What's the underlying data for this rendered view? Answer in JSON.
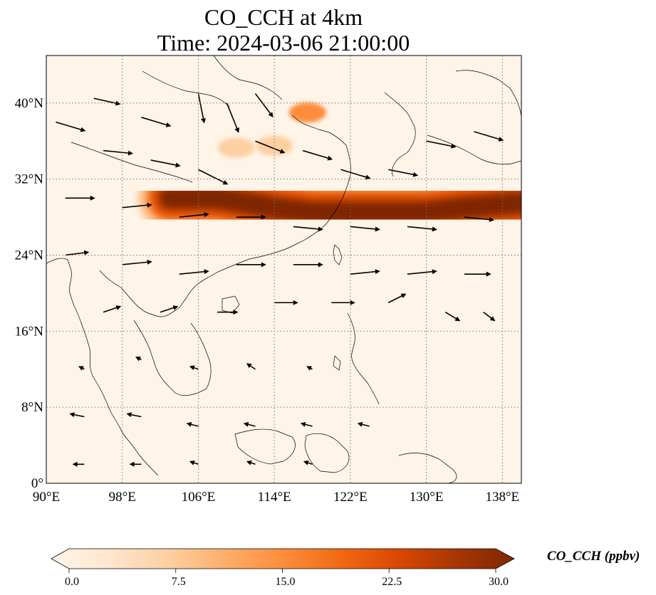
{
  "title_line1": "CO_CCH at 4km",
  "title_line2": "Time: 2024-03-06 21:00:00",
  "colorbar": {
    "label": "CO_CCH (ppbv)",
    "ticks": [
      "0.0",
      "7.5",
      "15.0",
      "22.5",
      "30.0"
    ],
    "colormap": [
      "#fff5eb",
      "#fee6ce",
      "#fdd0a2",
      "#fdae6b",
      "#fd8d3c",
      "#f16913",
      "#d94801",
      "#a63603",
      "#7f2704"
    ],
    "min": 0,
    "max": 30
  },
  "chart_data": {
    "type": "heatmap",
    "title": "CO_CCH at 4km",
    "subtitle": "Time: 2024-03-06 21:00:00",
    "variable": "CO_CCH",
    "units": "ppbv",
    "colormap": "OrRd",
    "color_range": [
      0,
      30
    ],
    "xlim": [
      90,
      140
    ],
    "ylim": [
      0,
      45
    ],
    "x_ticks": [
      {
        "value": 90,
        "label": "90°E"
      },
      {
        "value": 98,
        "label": "98°E"
      },
      {
        "value": 106,
        "label": "106°E"
      },
      {
        "value": 114,
        "label": "114°E"
      },
      {
        "value": 122,
        "label": "122°E"
      },
      {
        "value": 130,
        "label": "130°E"
      },
      {
        "value": 138,
        "label": "138°E"
      }
    ],
    "y_ticks": [
      {
        "value": 0,
        "label": "0°"
      },
      {
        "value": 8,
        "label": "8°N"
      },
      {
        "value": 16,
        "label": "16°N"
      },
      {
        "value": 24,
        "label": "24°N"
      },
      {
        "value": 32,
        "label": "32°N"
      },
      {
        "value": 40,
        "label": "40°N"
      }
    ],
    "grid": true,
    "plume": {
      "description_value_max": 30,
      "core_path": [
        [
          103,
          30
        ],
        [
          108,
          30
        ],
        [
          114,
          29
        ],
        [
          118,
          28.5
        ],
        [
          122,
          28.5
        ],
        [
          126,
          28.5
        ],
        [
          130,
          28.5
        ],
        [
          134,
          29
        ],
        [
          140,
          29.5
        ]
      ],
      "secondary_blobs": [
        {
          "lon": 117.5,
          "lat": 39,
          "value": 14
        },
        {
          "lon": 110,
          "lat": 35.3,
          "value": 8
        },
        {
          "lon": 114,
          "lat": 35.5,
          "value": 6
        }
      ]
    },
    "wind_vectors": [
      {
        "lon": 91,
        "lat": 38,
        "u": 1,
        "v": -0.3
      },
      {
        "lon": 95,
        "lat": 40.5,
        "u": 0.9,
        "v": -0.2
      },
      {
        "lon": 100,
        "lat": 38.5,
        "u": 1,
        "v": -0.3
      },
      {
        "lon": 106,
        "lat": 41,
        "u": 0.2,
        "v": -1
      },
      {
        "lon": 109,
        "lat": 40,
        "u": 0.4,
        "v": -1
      },
      {
        "lon": 112,
        "lat": 41,
        "u": 0.6,
        "v": -0.8
      },
      {
        "lon": 96,
        "lat": 35,
        "u": 1,
        "v": -0.1
      },
      {
        "lon": 101,
        "lat": 34,
        "u": 1,
        "v": -0.2
      },
      {
        "lon": 106,
        "lat": 33,
        "u": 1,
        "v": -0.5
      },
      {
        "lon": 112,
        "lat": 36,
        "u": 1,
        "v": -0.4
      },
      {
        "lon": 117,
        "lat": 35,
        "u": 1,
        "v": -0.3
      },
      {
        "lon": 121,
        "lat": 33,
        "u": 1,
        "v": -0.3
      },
      {
        "lon": 126,
        "lat": 33,
        "u": 1,
        "v": -0.2
      },
      {
        "lon": 130,
        "lat": 36,
        "u": 1,
        "v": -0.2
      },
      {
        "lon": 135,
        "lat": 37,
        "u": 1,
        "v": -0.3
      },
      {
        "lon": 92,
        "lat": 30,
        "u": 1,
        "v": 0
      },
      {
        "lon": 98,
        "lat": 29,
        "u": 1,
        "v": 0.1
      },
      {
        "lon": 104,
        "lat": 28,
        "u": 1,
        "v": 0.1
      },
      {
        "lon": 110,
        "lat": 28,
        "u": 1,
        "v": 0
      },
      {
        "lon": 116,
        "lat": 27,
        "u": 1,
        "v": -0.1
      },
      {
        "lon": 122,
        "lat": 27,
        "u": 1,
        "v": -0.1
      },
      {
        "lon": 128,
        "lat": 27,
        "u": 1,
        "v": -0.1
      },
      {
        "lon": 134,
        "lat": 28,
        "u": 1,
        "v": -0.1
      },
      {
        "lon": 92,
        "lat": 24,
        "u": 0.8,
        "v": 0.1
      },
      {
        "lon": 98,
        "lat": 23,
        "u": 1,
        "v": 0.1
      },
      {
        "lon": 104,
        "lat": 22,
        "u": 1,
        "v": 0.1
      },
      {
        "lon": 110,
        "lat": 23,
        "u": 1,
        "v": 0
      },
      {
        "lon": 116,
        "lat": 23,
        "u": 1,
        "v": 0
      },
      {
        "lon": 122,
        "lat": 22,
        "u": 1,
        "v": 0.1
      },
      {
        "lon": 128,
        "lat": 22,
        "u": 1,
        "v": 0.1
      },
      {
        "lon": 134,
        "lat": 22,
        "u": 0.9,
        "v": 0
      },
      {
        "lon": 96,
        "lat": 18,
        "u": 0.6,
        "v": 0.2
      },
      {
        "lon": 102,
        "lat": 18,
        "u": 0.6,
        "v": 0.2
      },
      {
        "lon": 108,
        "lat": 18,
        "u": 0.7,
        "v": 0
      },
      {
        "lon": 114,
        "lat": 19,
        "u": 0.8,
        "v": 0
      },
      {
        "lon": 120,
        "lat": 19,
        "u": 0.8,
        "v": 0
      },
      {
        "lon": 126,
        "lat": 19,
        "u": 0.6,
        "v": 0.3
      },
      {
        "lon": 132,
        "lat": 18,
        "u": 0.5,
        "v": -0.3
      },
      {
        "lon": 136,
        "lat": 18,
        "u": 0.4,
        "v": -0.3
      },
      {
        "lon": 94,
        "lat": 12,
        "u": -0.2,
        "v": 0.1
      },
      {
        "lon": 100,
        "lat": 13,
        "u": -0.2,
        "v": 0.1
      },
      {
        "lon": 106,
        "lat": 12,
        "u": -0.3,
        "v": 0.1
      },
      {
        "lon": 112,
        "lat": 12,
        "u": -0.3,
        "v": 0.2
      },
      {
        "lon": 118,
        "lat": 12,
        "u": -0.2,
        "v": 0.1
      },
      {
        "lon": 94,
        "lat": 7,
        "u": -0.5,
        "v": 0.1
      },
      {
        "lon": 100,
        "lat": 7,
        "u": -0.5,
        "v": 0.1
      },
      {
        "lon": 106,
        "lat": 6,
        "u": -0.4,
        "v": 0.1
      },
      {
        "lon": 112,
        "lat": 6,
        "u": -0.4,
        "v": 0.1
      },
      {
        "lon": 118,
        "lat": 6,
        "u": -0.4,
        "v": 0.1
      },
      {
        "lon": 124,
        "lat": 6,
        "u": -0.4,
        "v": 0.1
      },
      {
        "lon": 94,
        "lat": 2,
        "u": -0.4,
        "v": 0
      },
      {
        "lon": 100,
        "lat": 2,
        "u": -0.4,
        "v": 0
      },
      {
        "lon": 106,
        "lat": 2,
        "u": -0.3,
        "v": 0.1
      },
      {
        "lon": 112,
        "lat": 2,
        "u": -0.3,
        "v": 0.1
      },
      {
        "lon": 118,
        "lat": 2,
        "u": -0.3,
        "v": 0.1
      }
    ]
  }
}
